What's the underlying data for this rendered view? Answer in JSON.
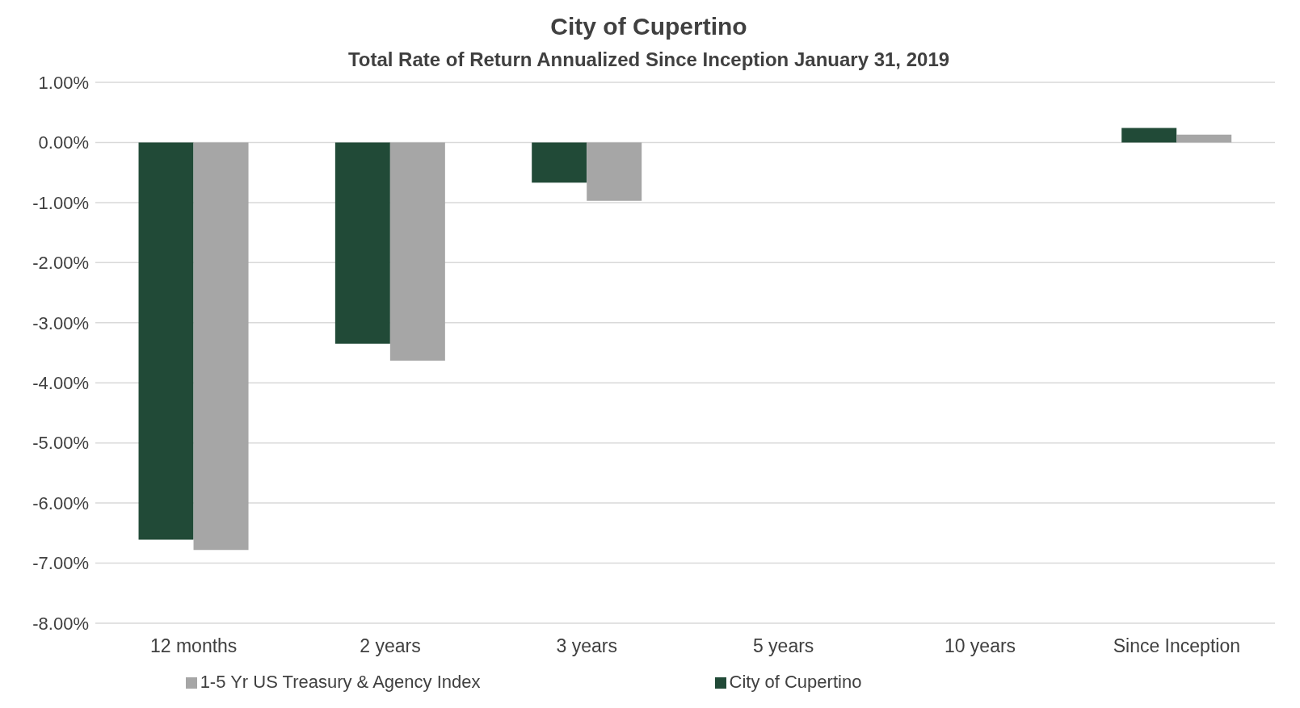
{
  "chart_data": {
    "type": "bar",
    "title": "City of Cupertino",
    "subtitle": "Total Rate of Return Annualized Since Inception January 31, 2019",
    "categories": [
      "12 months",
      "2 years",
      "3 years",
      "5 years",
      "10 years",
      "Since Inception"
    ],
    "series": [
      {
        "name": "City of Cupertino",
        "color": "#214a37",
        "values": [
          -6.61,
          -3.35,
          -0.67,
          null,
          null,
          0.24
        ]
      },
      {
        "name": "1-5 Yr US Treasury & Agency Index",
        "color": "#a6a6a6",
        "values": [
          -6.78,
          -3.63,
          -0.97,
          null,
          null,
          0.13
        ]
      }
    ],
    "ylim": [
      -8,
      1
    ],
    "yticks": [
      {
        "value": 1,
        "label": "1.00%"
      },
      {
        "value": 0,
        "label": "0.00%"
      },
      {
        "value": -1,
        "label": "-1.00%"
      },
      {
        "value": -2,
        "label": "-2.00%"
      },
      {
        "value": -3,
        "label": "-3.00%"
      },
      {
        "value": -4,
        "label": "-4.00%"
      },
      {
        "value": -5,
        "label": "-5.00%"
      },
      {
        "value": -6,
        "label": "-6.00%"
      },
      {
        "value": -7,
        "label": "-7.00%"
      },
      {
        "value": -8,
        "label": "-8.00%"
      }
    ],
    "grid": "y",
    "legend": "bottom"
  }
}
